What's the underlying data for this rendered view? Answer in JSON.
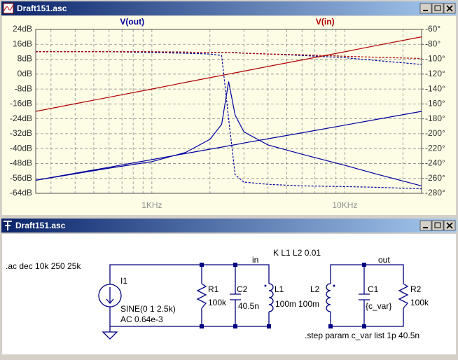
{
  "plot_window": {
    "title": "Draft151.asc",
    "chart_data": {
      "type": "line",
      "log_x": true,
      "x": [
        250,
        400,
        600,
        1000,
        1500,
        2000,
        2300,
        2500,
        2700,
        3000,
        4000,
        6000,
        10000,
        15000,
        25000
      ],
      "xlim": [
        250,
        25000
      ],
      "xticks": [
        {
          "value": 1000,
          "label": "1KHz"
        },
        {
          "value": 10000,
          "label": "10KHz"
        }
      ],
      "x_minor_grid": [
        300,
        400,
        500,
        600,
        700,
        800,
        900,
        2000,
        3000,
        4000,
        5000,
        6000,
        7000,
        8000,
        9000,
        20000
      ],
      "ylim": [
        -64,
        24
      ],
      "yticks": [
        {
          "value": 24,
          "label": "24dB"
        },
        {
          "value": 16,
          "label": "16dB"
        },
        {
          "value": 8,
          "label": "8dB"
        },
        {
          "value": 0,
          "label": "0dB"
        },
        {
          "value": -8,
          "label": "-8dB"
        },
        {
          "value": -16,
          "label": "-16dB"
        },
        {
          "value": -24,
          "label": "-24dB"
        },
        {
          "value": -32,
          "label": "-32dB"
        },
        {
          "value": -40,
          "label": "-40dB"
        },
        {
          "value": -48,
          "label": "-48dB"
        },
        {
          "value": -56,
          "label": "-56dB"
        },
        {
          "value": -64,
          "label": "-64dB"
        }
      ],
      "y2lim": [
        -280,
        -60
      ],
      "y2ticks": [
        {
          "value": -60,
          "label": "-60°"
        },
        {
          "value": -80,
          "label": "-80°"
        },
        {
          "value": -100,
          "label": "-100°"
        },
        {
          "value": -120,
          "label": "-120°"
        },
        {
          "value": -140,
          "label": "-140°"
        },
        {
          "value": -160,
          "label": "-160°"
        },
        {
          "value": -180,
          "label": "-180°"
        },
        {
          "value": -200,
          "label": "-200°"
        },
        {
          "value": -220,
          "label": "-220°"
        },
        {
          "value": -240,
          "label": "-240°"
        },
        {
          "value": -260,
          "label": "-260°"
        },
        {
          "value": -280,
          "label": "-280°"
        }
      ],
      "grid": true,
      "series": [
        {
          "name": "V(out)",
          "color": "#0000a0",
          "traces": [
            {
              "values": [
                -57,
                -53.2,
                -50,
                -45.9,
                -42.6,
                -40.3,
                -39.2,
                -38.5,
                -37.9,
                -37,
                -34.7,
                -31.5,
                -27.4,
                -24.1,
                -20
              ]
            },
            {
              "values": [
                -57,
                -53.5,
                -50.5,
                -47,
                -42,
                -35,
                -27,
                -4,
                -22,
                -31,
                -38,
                -43,
                -49,
                -54,
                -60
              ]
            },
            {
              "axis": "y2",
              "values": [
                -90,
                -90,
                -90,
                -90,
                -90.5,
                -91,
                -91,
                -91,
                -91,
                -92,
                -93,
                -95,
                -98,
                -102,
                -107
              ]
            },
            {
              "axis": "y2",
              "values": [
                -90,
                -90,
                -90,
                -91,
                -92,
                -93,
                -95,
                -180,
                -255,
                -265,
                -268,
                -270,
                -271,
                -272,
                -274
              ]
            }
          ]
        },
        {
          "name": "V(in)",
          "color": "#b00000",
          "traces": [
            {
              "values": [
                -20,
                -15.9,
                -12.4,
                -8,
                -4.4,
                -1.9,
                -0.7,
                0,
                0.7,
                1.6,
                4.1,
                7.6,
                12,
                15.6,
                20
              ]
            },
            {
              "axis": "y2",
              "values": [
                -90,
                -90,
                -90,
                -90,
                -90.5,
                -91,
                -91,
                -91,
                -91.5,
                -92,
                -93,
                -94,
                -96,
                -97.5,
                -99
              ]
            }
          ]
        }
      ]
    }
  },
  "schematic_window": {
    "title": "Draft151.asc",
    "directives": [
      ".ac dec 10k 250 25k",
      "K L1 L2 0.01",
      ".step param c_var list 1p 40.5n"
    ],
    "net_labels": [
      "in",
      "out"
    ],
    "components": [
      {
        "name": "I1",
        "value": [
          "SINE(0 1 2.5k)",
          "AC 0.64e-3"
        ]
      },
      {
        "name": "R1",
        "value": [
          "100k"
        ]
      },
      {
        "name": "C2",
        "value": [
          "40.5n"
        ]
      },
      {
        "name": "L1",
        "value": [
          "100m"
        ]
      },
      {
        "name": "L2",
        "value": [
          "100m"
        ]
      },
      {
        "name": "C1",
        "value": [
          "{c_var}"
        ]
      },
      {
        "name": "R2",
        "value": [
          "100k"
        ]
      }
    ]
  }
}
